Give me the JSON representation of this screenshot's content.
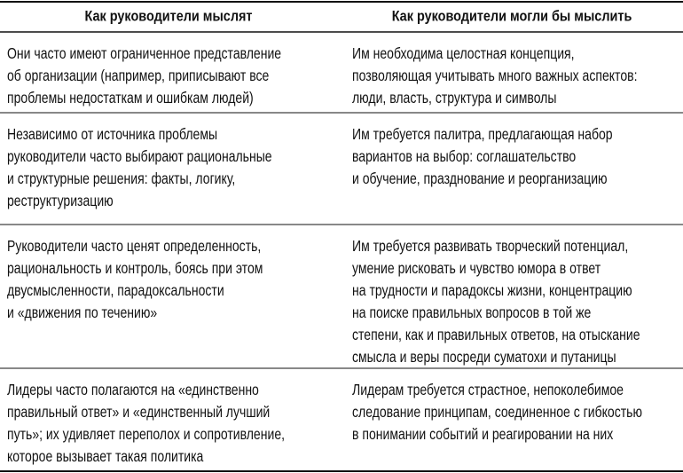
{
  "table": {
    "header": [
      "Как руководители мыслят",
      "Как руководители могли бы мыслить"
    ],
    "rows": [
      [
        [
          "Они часто имеют ограниченное представление",
          "об организации (например, приписывают все",
          "проблемы недостаткам и ошибкам людей)"
        ],
        [
          "Им необходима целостная концепция,",
          "позволяющая учитывать много важных аспектов:",
          "люди, власть, структура и символы"
        ]
      ],
      [
        [
          "Независимо от источника проблемы",
          "руководители часто выбирают рациональные",
          "и структурные решения: факты, логику,",
          "реструктуризацию"
        ],
        [
          "Им требуется палитра, предлагающая набор",
          "вариантов на выбор: соглашательство",
          "и обучение, празднование и реорганизацию"
        ]
      ],
      [
        [
          "Руководители часто ценят определенность,",
          "рациональность и контроль, боясь при этом",
          "двусмысленности, парадоксальности",
          "и «движения по течению»"
        ],
        [
          "Им требуется развивать творческий потенциал,",
          "умение рисковать и чувство юмора в ответ",
          "на трудности и парадоксы жизни, концентрацию",
          "на поиске правильных вопросов в той же",
          "степени, как и правильных ответов, на отыскание",
          "смысла и веры посреди суматохи и путаницы"
        ]
      ],
      [
        [
          "Лидеры часто полагаются на «единственно",
          "правильный ответ» и «единственный лучший",
          "путь»; их удивляет переполох и сопротивление,",
          "которое вызывает такая политика"
        ],
        [
          "Лидерам требуется страстное, непоколебимое",
          "следование принципам, соединенное с гибкостью",
          "в понимании событий и реагировании на них"
        ]
      ]
    ]
  }
}
